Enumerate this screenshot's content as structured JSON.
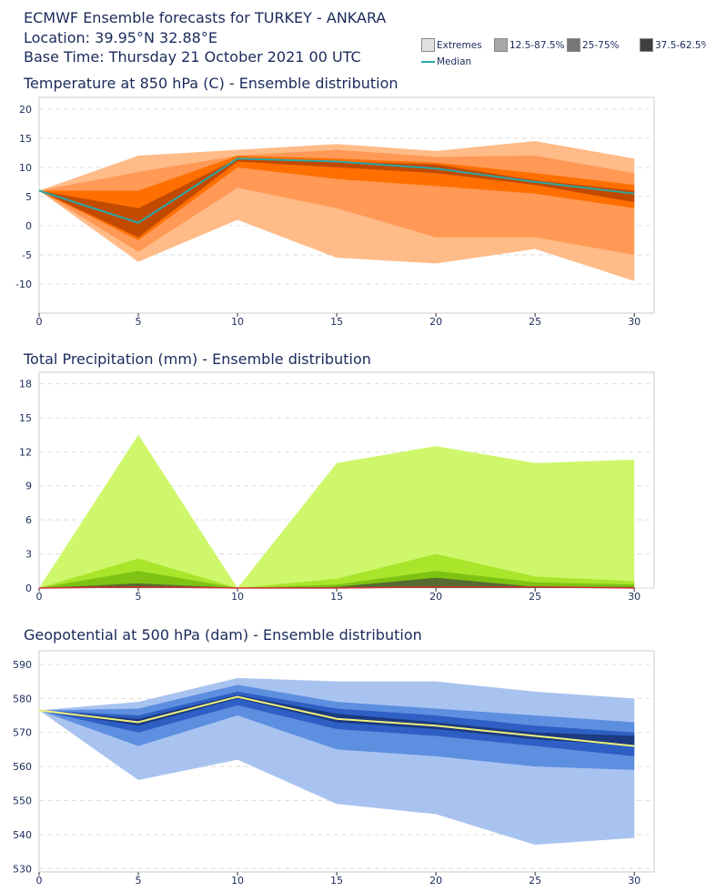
{
  "header": {
    "line1": "ECMWF Ensemble forecasts for TURKEY - ANKARA",
    "line2": "Location:  39.95°N 32.88°E",
    "line3": "Base Time: Thursday 21 October 2021 00 UTC"
  },
  "legend": {
    "extremes": "Extremes",
    "p12": "12.5-87.5%",
    "p25": "25-75%",
    "p37": "37.5-62.5%",
    "median": "Median"
  },
  "colors": {
    "temp": [
      "#ffbb88",
      "#ff9955",
      "#ff6f00",
      "#c24a00",
      "#2aa6a6"
    ],
    "prec": [
      "#cef76b",
      "#a9e52a",
      "#7ec214",
      "#556b2f",
      "#cc3333"
    ],
    "geo": [
      "#a9c3f0",
      "#5d8fe0",
      "#2e5fc4",
      "#1b3a80",
      "#f2f27a"
    ]
  },
  "chart_data": [
    {
      "id": "temp",
      "type": "area",
      "title": "Temperature at 850 hPa (C) - Ensemble distribution",
      "xlim": [
        0,
        31
      ],
      "ylim": [
        -15,
        22
      ],
      "xticks": [
        0,
        5,
        10,
        15,
        20,
        25,
        30
      ],
      "yticks": [
        -10,
        -5,
        0,
        5,
        10,
        15,
        20
      ],
      "x": [
        0,
        5,
        10,
        15,
        20,
        25,
        30
      ],
      "series": [
        {
          "name": "extremes_max",
          "values": [
            6,
            12,
            13,
            14,
            12.8,
            14.5,
            11.5
          ]
        },
        {
          "name": "p87_5",
          "values": [
            6,
            9.2,
            12,
            13,
            11.8,
            12,
            9
          ]
        },
        {
          "name": "p75",
          "values": [
            6,
            6,
            12,
            11.5,
            10.8,
            9,
            7
          ]
        },
        {
          "name": "p62_5",
          "values": [
            6,
            3,
            11.5,
            11,
            10.5,
            7.8,
            6
          ]
        },
        {
          "name": "median",
          "values": [
            6,
            0.5,
            11.5,
            11,
            9.8,
            7.5,
            5.5
          ]
        },
        {
          "name": "p37_5",
          "values": [
            6,
            -2,
            11,
            10,
            9,
            7,
            4
          ]
        },
        {
          "name": "p25",
          "values": [
            6,
            -2.5,
            10,
            8,
            6.8,
            5.5,
            3
          ]
        },
        {
          "name": "p12_5",
          "values": [
            6,
            -4.5,
            6.5,
            3,
            -2,
            -2,
            -5
          ]
        },
        {
          "name": "extremes_min",
          "values": [
            6,
            -6.2,
            1,
            -5.5,
            -6.5,
            -4,
            -9.5
          ]
        }
      ]
    },
    {
      "id": "prec",
      "type": "area",
      "title": "Total Precipitation (mm) - Ensemble distribution",
      "xlim": [
        0,
        31
      ],
      "ylim": [
        0,
        19
      ],
      "xticks": [
        0,
        5,
        10,
        15,
        20,
        25,
        30
      ],
      "yticks": [
        0,
        3,
        6,
        9,
        12,
        15,
        18
      ],
      "x": [
        0,
        5,
        10,
        15,
        20,
        25,
        30
      ],
      "series": [
        {
          "name": "extremes_max",
          "values": [
            0,
            13.5,
            0,
            11,
            12.5,
            11,
            11.3
          ]
        },
        {
          "name": "p87_5",
          "values": [
            0,
            2.6,
            0,
            0.8,
            3,
            1,
            0.6
          ]
        },
        {
          "name": "p75",
          "values": [
            0,
            1.5,
            0,
            0.3,
            1.5,
            0.5,
            0.3
          ]
        },
        {
          "name": "p62_5",
          "values": [
            0,
            0.4,
            0,
            0.1,
            0.9,
            0.1,
            0.1
          ]
        },
        {
          "name": "median",
          "values": [
            0,
            0.1,
            0,
            0,
            0.1,
            0.1,
            0
          ]
        }
      ]
    },
    {
      "id": "geo",
      "type": "area",
      "title": "Geopotential at 500 hPa (dam) - Ensemble distribution",
      "xlim": [
        0,
        31
      ],
      "ylim": [
        529,
        594
      ],
      "xticks": [
        0,
        5,
        10,
        15,
        20,
        25,
        30
      ],
      "yticks": [
        530,
        540,
        550,
        560,
        570,
        580,
        590
      ],
      "x": [
        0,
        5,
        10,
        15,
        20,
        25,
        30
      ],
      "series": [
        {
          "name": "extremes_max",
          "values": [
            576.5,
            579,
            586,
            585,
            585,
            582,
            580
          ]
        },
        {
          "name": "p87_5",
          "values": [
            576.5,
            577,
            584,
            579,
            577,
            575,
            573
          ]
        },
        {
          "name": "p75",
          "values": [
            576.5,
            575,
            582,
            577,
            575,
            572,
            570
          ]
        },
        {
          "name": "p62_5",
          "values": [
            576.5,
            574,
            581,
            575.5,
            573,
            570,
            569
          ]
        },
        {
          "name": "median",
          "values": [
            576.5,
            573,
            580.5,
            574,
            572,
            569,
            566
          ]
        },
        {
          "name": "p37_5",
          "values": [
            576.5,
            572,
            580,
            573,
            571,
            568,
            566
          ]
        },
        {
          "name": "p25",
          "values": [
            576.5,
            570,
            578,
            571,
            569,
            566,
            563
          ]
        },
        {
          "name": "p12_5",
          "values": [
            576.5,
            566,
            575,
            565,
            563,
            560,
            559
          ]
        },
        {
          "name": "extremes_min",
          "values": [
            576.5,
            556,
            562,
            549,
            546,
            537,
            539
          ]
        }
      ]
    }
  ]
}
